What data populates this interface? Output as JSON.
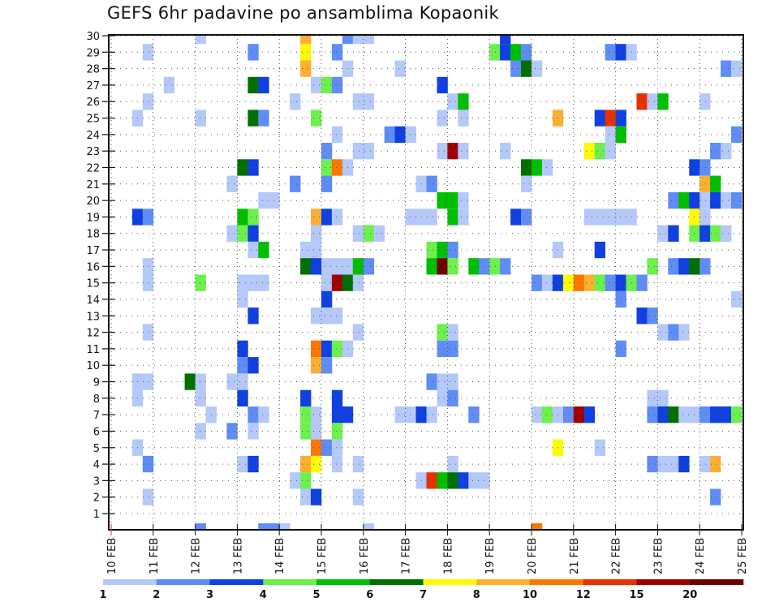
{
  "chart_data": {
    "type": "heatmap",
    "title": "GEFS 6hr padavine po ansamblima Kopaonik",
    "xlabel": "",
    "ylabel": "",
    "x_tick_labels": [
      "10 FEB",
      "11 FEB",
      "12 FEB",
      "13 FEB",
      "14 FEB",
      "15 FEB",
      "16 FEB",
      "17 FEB",
      "18 FEB",
      "19 FEB",
      "20 FEB",
      "21 FEB",
      "22 FEB",
      "23 FEB",
      "24 FEB",
      "25 FEB"
    ],
    "y_tick_labels": [
      "1",
      "2",
      "3",
      "4",
      "5",
      "6",
      "7",
      "8",
      "9",
      "10",
      "11",
      "12",
      "13",
      "14",
      "15",
      "16",
      "17",
      "18",
      "19",
      "20",
      "21",
      "22",
      "23",
      "24",
      "25",
      "26",
      "27",
      "28",
      "29",
      "30"
    ],
    "time_steps_per_day": 4,
    "n_time_steps": 60,
    "n_members": 30,
    "grid": true,
    "legend": {
      "position": "bottom",
      "bin_labels": [
        "1",
        "2",
        "3",
        "4",
        "5",
        "6",
        "7",
        "8",
        "10",
        "12",
        "15",
        "20"
      ],
      "colors": [
        "#b4c8fa",
        "#5f8cf5",
        "#1040e0",
        "#6cf04c",
        "#00be00",
        "#007000",
        "#fafa00",
        "#fbaf32",
        "#fa7800",
        "#e63200",
        "#a00000",
        "#6e0000"
      ]
    },
    "cells_format": "[member, six_hour_step_index_from_10_FEB_00Z, color_bin_index]",
    "cells": [
      [
        30,
        8,
        0
      ],
      [
        30,
        18,
        7
      ],
      [
        30,
        22,
        1
      ],
      [
        30,
        23,
        0
      ],
      [
        30,
        24,
        0
      ],
      [
        30,
        37,
        2
      ],
      [
        29,
        3,
        0
      ],
      [
        29,
        13,
        1
      ],
      [
        29,
        18,
        6
      ],
      [
        29,
        21,
        1
      ],
      [
        29,
        36,
        3
      ],
      [
        29,
        37,
        2
      ],
      [
        29,
        38,
        4
      ],
      [
        29,
        39,
        1
      ],
      [
        29,
        47,
        1
      ],
      [
        29,
        48,
        2
      ],
      [
        29,
        49,
        0
      ],
      [
        28,
        18,
        7
      ],
      [
        28,
        22,
        0
      ],
      [
        28,
        27,
        0
      ],
      [
        28,
        38,
        1
      ],
      [
        28,
        39,
        5
      ],
      [
        28,
        40,
        0
      ],
      [
        28,
        58,
        1
      ],
      [
        28,
        59,
        0
      ],
      [
        27,
        5,
        0
      ],
      [
        27,
        13,
        5
      ],
      [
        27,
        14,
        2
      ],
      [
        27,
        19,
        0
      ],
      [
        27,
        20,
        3
      ],
      [
        27,
        21,
        1
      ],
      [
        27,
        31,
        2
      ],
      [
        26,
        3,
        0
      ],
      [
        26,
        17,
        0
      ],
      [
        26,
        23,
        0
      ],
      [
        26,
        24,
        0
      ],
      [
        26,
        32,
        0
      ],
      [
        26,
        33,
        4
      ],
      [
        26,
        50,
        9
      ],
      [
        26,
        51,
        0
      ],
      [
        26,
        52,
        4
      ],
      [
        26,
        56,
        0
      ],
      [
        25,
        2,
        0
      ],
      [
        25,
        8,
        0
      ],
      [
        25,
        13,
        5
      ],
      [
        25,
        14,
        1
      ],
      [
        25,
        19,
        3
      ],
      [
        25,
        31,
        0
      ],
      [
        25,
        33,
        0
      ],
      [
        25,
        42,
        7
      ],
      [
        25,
        46,
        2
      ],
      [
        25,
        47,
        9
      ],
      [
        25,
        48,
        2
      ],
      [
        24,
        21,
        0
      ],
      [
        24,
        26,
        1
      ],
      [
        24,
        27,
        2
      ],
      [
        24,
        28,
        0
      ],
      [
        24,
        47,
        0
      ],
      [
        24,
        48,
        4
      ],
      [
        24,
        59,
        1
      ],
      [
        23,
        20,
        1
      ],
      [
        23,
        23,
        0
      ],
      [
        23,
        24,
        0
      ],
      [
        23,
        31,
        0
      ],
      [
        23,
        32,
        10
      ],
      [
        23,
        33,
        0
      ],
      [
        23,
        37,
        0
      ],
      [
        23,
        45,
        6
      ],
      [
        23,
        46,
        3
      ],
      [
        23,
        47,
        0
      ],
      [
        23,
        57,
        1
      ],
      [
        23,
        58,
        0
      ],
      [
        22,
        12,
        5
      ],
      [
        22,
        13,
        2
      ],
      [
        22,
        20,
        3
      ],
      [
        22,
        21,
        8
      ],
      [
        22,
        22,
        0
      ],
      [
        22,
        39,
        5
      ],
      [
        22,
        40,
        4
      ],
      [
        22,
        41,
        0
      ],
      [
        22,
        55,
        2
      ],
      [
        22,
        56,
        1
      ],
      [
        21,
        11,
        0
      ],
      [
        21,
        17,
        1
      ],
      [
        21,
        20,
        1
      ],
      [
        21,
        29,
        0
      ],
      [
        21,
        30,
        1
      ],
      [
        21,
        39,
        0
      ],
      [
        21,
        56,
        7
      ],
      [
        21,
        57,
        4
      ],
      [
        20,
        14,
        0
      ],
      [
        20,
        15,
        0
      ],
      [
        20,
        31,
        4
      ],
      [
        20,
        32,
        4
      ],
      [
        20,
        33,
        0
      ],
      [
        20,
        53,
        1
      ],
      [
        20,
        54,
        4
      ],
      [
        20,
        55,
        2
      ],
      [
        20,
        56,
        0
      ],
      [
        20,
        57,
        2
      ],
      [
        20,
        58,
        0
      ],
      [
        20,
        59,
        1
      ],
      [
        19,
        2,
        2
      ],
      [
        19,
        3,
        1
      ],
      [
        19,
        12,
        4
      ],
      [
        19,
        13,
        3
      ],
      [
        19,
        19,
        7
      ],
      [
        19,
        20,
        2
      ],
      [
        19,
        21,
        0
      ],
      [
        19,
        28,
        0
      ],
      [
        19,
        29,
        0
      ],
      [
        19,
        30,
        0
      ],
      [
        19,
        32,
        4
      ],
      [
        19,
        33,
        0
      ],
      [
        19,
        38,
        2
      ],
      [
        19,
        39,
        1
      ],
      [
        19,
        45,
        0
      ],
      [
        19,
        46,
        0
      ],
      [
        19,
        47,
        0
      ],
      [
        19,
        48,
        0
      ],
      [
        19,
        49,
        0
      ],
      [
        19,
        55,
        6
      ],
      [
        19,
        56,
        0
      ],
      [
        18,
        11,
        0
      ],
      [
        18,
        12,
        3
      ],
      [
        18,
        13,
        2
      ],
      [
        18,
        19,
        0
      ],
      [
        18,
        23,
        0
      ],
      [
        18,
        24,
        3
      ],
      [
        18,
        25,
        0
      ],
      [
        18,
        52,
        0
      ],
      [
        18,
        53,
        2
      ],
      [
        18,
        55,
        3
      ],
      [
        18,
        56,
        2
      ],
      [
        18,
        57,
        3
      ],
      [
        18,
        58,
        0
      ],
      [
        17,
        13,
        0
      ],
      [
        17,
        14,
        4
      ],
      [
        17,
        18,
        0
      ],
      [
        17,
        19,
        0
      ],
      [
        17,
        30,
        3
      ],
      [
        17,
        31,
        4
      ],
      [
        17,
        32,
        1
      ],
      [
        17,
        42,
        0
      ],
      [
        17,
        46,
        2
      ],
      [
        16,
        3,
        0
      ],
      [
        16,
        18,
        5
      ],
      [
        16,
        19,
        2
      ],
      [
        16,
        20,
        0
      ],
      [
        16,
        21,
        0
      ],
      [
        16,
        22,
        0
      ],
      [
        16,
        23,
        4
      ],
      [
        16,
        24,
        1
      ],
      [
        16,
        30,
        4
      ],
      [
        16,
        31,
        11
      ],
      [
        16,
        32,
        3
      ],
      [
        16,
        34,
        4
      ],
      [
        16,
        35,
        1
      ],
      [
        16,
        36,
        3
      ],
      [
        16,
        37,
        1
      ],
      [
        16,
        51,
        3
      ],
      [
        16,
        53,
        1
      ],
      [
        16,
        54,
        2
      ],
      [
        16,
        55,
        5
      ],
      [
        16,
        56,
        1
      ],
      [
        15,
        3,
        0
      ],
      [
        15,
        8,
        3
      ],
      [
        15,
        12,
        0
      ],
      [
        15,
        13,
        0
      ],
      [
        15,
        14,
        0
      ],
      [
        15,
        20,
        0
      ],
      [
        15,
        21,
        10
      ],
      [
        15,
        22,
        5
      ],
      [
        15,
        23,
        0
      ],
      [
        15,
        40,
        1
      ],
      [
        15,
        41,
        0
      ],
      [
        15,
        42,
        2
      ],
      [
        15,
        43,
        6
      ],
      [
        15,
        44,
        8
      ],
      [
        15,
        45,
        7
      ],
      [
        15,
        46,
        3
      ],
      [
        15,
        47,
        1
      ],
      [
        15,
        48,
        2
      ],
      [
        15,
        49,
        3
      ],
      [
        15,
        50,
        1
      ],
      [
        14,
        12,
        0
      ],
      [
        14,
        20,
        2
      ],
      [
        14,
        48,
        1
      ],
      [
        14,
        59,
        0
      ],
      [
        13,
        13,
        2
      ],
      [
        13,
        19,
        0
      ],
      [
        13,
        20,
        0
      ],
      [
        13,
        21,
        0
      ],
      [
        13,
        50,
        2
      ],
      [
        13,
        51,
        1
      ],
      [
        12,
        3,
        0
      ],
      [
        12,
        23,
        0
      ],
      [
        12,
        31,
        3
      ],
      [
        12,
        32,
        0
      ],
      [
        12,
        52,
        0
      ],
      [
        12,
        53,
        1
      ],
      [
        12,
        54,
        0
      ],
      [
        11,
        12,
        2
      ],
      [
        11,
        19,
        8
      ],
      [
        11,
        20,
        2
      ],
      [
        11,
        21,
        3
      ],
      [
        11,
        22,
        0
      ],
      [
        11,
        31,
        1
      ],
      [
        11,
        32,
        1
      ],
      [
        11,
        48,
        1
      ],
      [
        10,
        12,
        1
      ],
      [
        10,
        13,
        2
      ],
      [
        10,
        19,
        7
      ],
      [
        10,
        20,
        1
      ],
      [
        9,
        2,
        0
      ],
      [
        9,
        3,
        0
      ],
      [
        9,
        7,
        5
      ],
      [
        9,
        8,
        0
      ],
      [
        9,
        11,
        0
      ],
      [
        9,
        12,
        0
      ],
      [
        9,
        30,
        1
      ],
      [
        9,
        31,
        0
      ],
      [
        9,
        32,
        0
      ],
      [
        8,
        2,
        0
      ],
      [
        8,
        8,
        0
      ],
      [
        8,
        12,
        2
      ],
      [
        8,
        18,
        2
      ],
      [
        8,
        21,
        2
      ],
      [
        8,
        31,
        0
      ],
      [
        8,
        32,
        1
      ],
      [
        8,
        51,
        0
      ],
      [
        8,
        52,
        0
      ],
      [
        7,
        9,
        0
      ],
      [
        7,
        13,
        1
      ],
      [
        7,
        14,
        0
      ],
      [
        7,
        18,
        3
      ],
      [
        7,
        19,
        0
      ],
      [
        7,
        21,
        2
      ],
      [
        7,
        22,
        2
      ],
      [
        7,
        27,
        0
      ],
      [
        7,
        28,
        0
      ],
      [
        7,
        29,
        2
      ],
      [
        7,
        30,
        0
      ],
      [
        7,
        34,
        1
      ],
      [
        7,
        40,
        0
      ],
      [
        7,
        41,
        3
      ],
      [
        7,
        42,
        0
      ],
      [
        7,
        43,
        1
      ],
      [
        7,
        44,
        10
      ],
      [
        7,
        45,
        2
      ],
      [
        7,
        51,
        1
      ],
      [
        7,
        52,
        2
      ],
      [
        7,
        53,
        5
      ],
      [
        7,
        54,
        0
      ],
      [
        7,
        55,
        0
      ],
      [
        7,
        56,
        1
      ],
      [
        7,
        57,
        2
      ],
      [
        7,
        58,
        2
      ],
      [
        7,
        59,
        3
      ],
      [
        6,
        8,
        0
      ],
      [
        6,
        11,
        1
      ],
      [
        6,
        13,
        0
      ],
      [
        6,
        18,
        3
      ],
      [
        6,
        19,
        0
      ],
      [
        6,
        21,
        3
      ],
      [
        5,
        2,
        0
      ],
      [
        5,
        19,
        8
      ],
      [
        5,
        20,
        1
      ],
      [
        5,
        21,
        0
      ],
      [
        5,
        42,
        6
      ],
      [
        5,
        46,
        0
      ],
      [
        4,
        3,
        1
      ],
      [
        4,
        12,
        0
      ],
      [
        4,
        13,
        2
      ],
      [
        4,
        18,
        7
      ],
      [
        4,
        19,
        6
      ],
      [
        4,
        21,
        0
      ],
      [
        4,
        23,
        0
      ],
      [
        4,
        32,
        0
      ],
      [
        4,
        51,
        1
      ],
      [
        4,
        52,
        0
      ],
      [
        4,
        53,
        0
      ],
      [
        4,
        54,
        2
      ],
      [
        4,
        56,
        0
      ],
      [
        4,
        57,
        7
      ],
      [
        3,
        17,
        0
      ],
      [
        3,
        18,
        3
      ],
      [
        3,
        29,
        0
      ],
      [
        3,
        30,
        9
      ],
      [
        3,
        31,
        4
      ],
      [
        3,
        32,
        5
      ],
      [
        3,
        33,
        2
      ],
      [
        3,
        34,
        0
      ],
      [
        3,
        35,
        0
      ],
      [
        2,
        3,
        0
      ],
      [
        2,
        18,
        0
      ],
      [
        2,
        19,
        2
      ],
      [
        2,
        23,
        0
      ],
      [
        2,
        57,
        1
      ]
    ],
    "edge_cells_below_axis": [
      [
        8,
        1
      ],
      [
        14,
        1
      ],
      [
        15,
        1
      ],
      [
        16,
        0
      ],
      [
        24,
        0
      ],
      [
        40,
        8
      ]
    ]
  }
}
